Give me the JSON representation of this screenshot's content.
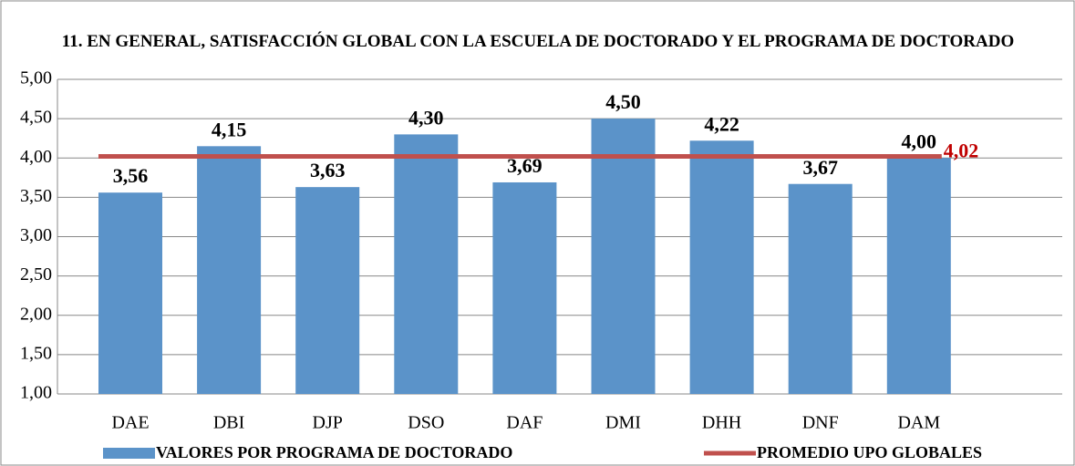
{
  "chart_data": {
    "type": "bar",
    "title": "11. EN GENERAL, SATISFACCIÓN GLOBAL CON LA ESCUELA DE DOCTORADO Y EL PROGRAMA DE DOCTORADO",
    "categories": [
      "DAE",
      "DBI",
      "DJP",
      "DSO",
      "DAF",
      "DMI",
      "DHH",
      "DNF",
      "DAM"
    ],
    "series": [
      {
        "name": "VALORES POR PROGRAMA DE DOCTORADO",
        "type": "bar",
        "color": "#5b93c9",
        "values": [
          3.56,
          4.15,
          3.63,
          4.3,
          3.69,
          4.5,
          4.22,
          3.67,
          4.0
        ],
        "value_labels": [
          "3,56",
          "4,15",
          "3,63",
          "4,30",
          "3,69",
          "4,50",
          "4,22",
          "3,67",
          "4,00"
        ]
      },
      {
        "name": "PROMEDIO UPO GLOBALES",
        "type": "line",
        "color": "#c0504d",
        "value": 4.02,
        "value_label": "4,02"
      }
    ],
    "ylim": [
      1,
      5
    ],
    "yticks": [
      {
        "value": 1,
        "label": "1,00"
      },
      {
        "value": 1.5,
        "label": "1,50"
      },
      {
        "value": 2,
        "label": "2,00"
      },
      {
        "value": 2.5,
        "label": "2,50"
      },
      {
        "value": 3,
        "label": "3,00"
      },
      {
        "value": 3.5,
        "label": "3,50"
      },
      {
        "value": 4,
        "label": "4,00"
      },
      {
        "value": 4.5,
        "label": "4,50"
      },
      {
        "value": 5,
        "label": "5,00"
      }
    ],
    "grid": true,
    "legend": "bottom"
  }
}
